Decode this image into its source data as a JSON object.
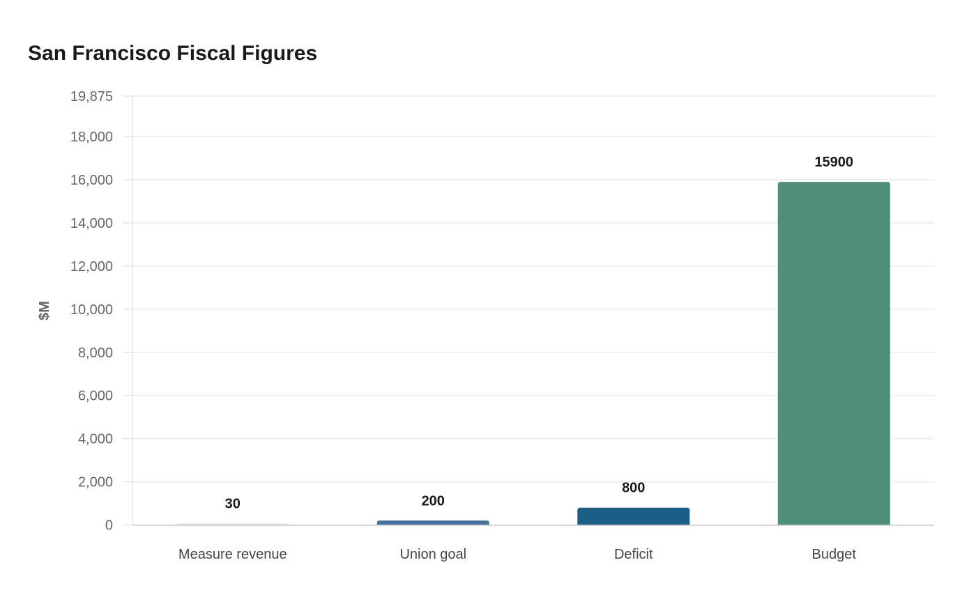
{
  "chart_data": {
    "type": "bar",
    "title": "San Francisco Fiscal Figures",
    "xlabel": "",
    "ylabel": "$M",
    "categories": [
      "Measure revenue",
      "Union goal",
      "Deficit",
      "Budget"
    ],
    "values": [
      30,
      200,
      800,
      15900
    ],
    "data_labels": [
      "30",
      "200",
      "800",
      "15900"
    ],
    "colors": [
      "#e0e0e0",
      "#4a70a0",
      "#1b5f86",
      "#4e8e7b"
    ],
    "ylim": [
      0,
      19875
    ],
    "yticks": [
      0,
      2000,
      4000,
      6000,
      8000,
      10000,
      12000,
      14000,
      16000,
      18000,
      19875
    ],
    "ytick_labels": [
      "0",
      "2,000",
      "4,000",
      "6,000",
      "8,000",
      "10,000",
      "12,000",
      "14,000",
      "16,000",
      "18,000",
      "19,875"
    ],
    "grid": true,
    "legend": "none"
  }
}
